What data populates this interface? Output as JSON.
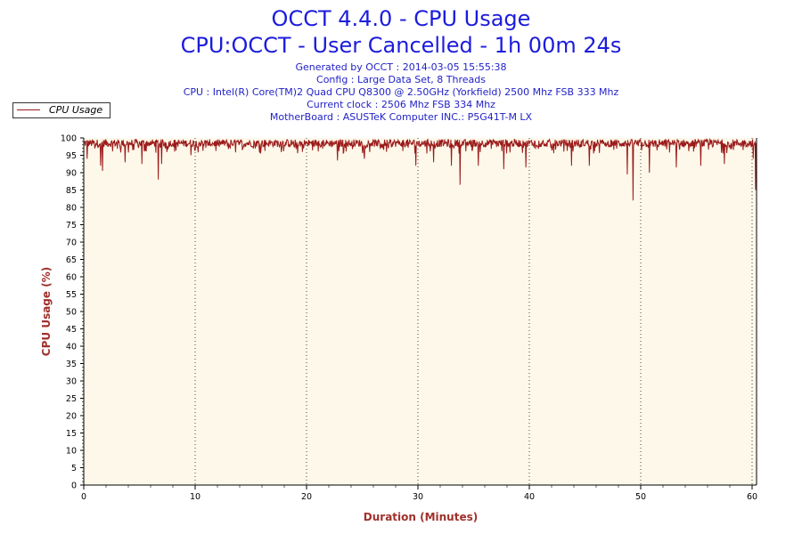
{
  "header": {
    "title": "OCCT 4.4.0 - CPU Usage",
    "subtitle": "CPU:OCCT - User Cancelled - 1h 00m 24s",
    "info_lines": [
      "Generated by OCCT : 2014-03-05 15:55:38",
      "Config : Large Data Set, 8 Threads",
      "CPU : Intel(R) Core(TM)2 Quad CPU Q8300 @ 2.50GHz (Yorkfield) 2500 Mhz FSB 333 Mhz",
      "Current clock : 2506 Mhz FSB 334 Mhz",
      "MotherBoard : ASUSTeK Computer INC.: P5G41T-M LX"
    ]
  },
  "colors": {
    "series": "#9b1a1a",
    "plot_background": "#fdf8ea",
    "title": "#1c1cdc",
    "axis_title": "#a0302a"
  },
  "chart_data": {
    "type": "line",
    "title": "OCCT 4.4.0 - CPU Usage",
    "xlabel": "Duration (Minutes)",
    "ylabel": "CPU Usage (%)",
    "xlim": [
      0,
      60.4
    ],
    "ylim": [
      0,
      100
    ],
    "x_ticks": [
      0,
      10,
      20,
      30,
      40,
      50,
      60
    ],
    "y_ticks": [
      0,
      5,
      10,
      15,
      20,
      25,
      30,
      35,
      40,
      45,
      50,
      55,
      60,
      65,
      70,
      75,
      80,
      85,
      90,
      95,
      100
    ],
    "grid": "vertical dotted lines at major x ticks",
    "legend": "top-left",
    "series": [
      {
        "name": "CPU Usage",
        "baseline": 98.5,
        "range": [
          95.5,
          100
        ],
        "dips": [
          {
            "x": 0.3,
            "y": 94
          },
          {
            "x": 1.5,
            "y": 92
          },
          {
            "x": 1.7,
            "y": 90.5
          },
          {
            "x": 3.7,
            "y": 93
          },
          {
            "x": 5.2,
            "y": 92.5
          },
          {
            "x": 6.7,
            "y": 88
          },
          {
            "x": 7.0,
            "y": 92.5
          },
          {
            "x": 9.6,
            "y": 95
          },
          {
            "x": 22.8,
            "y": 93.5
          },
          {
            "x": 25.2,
            "y": 94
          },
          {
            "x": 29.8,
            "y": 92
          },
          {
            "x": 31.4,
            "y": 93
          },
          {
            "x": 33.0,
            "y": 92
          },
          {
            "x": 33.8,
            "y": 86.5
          },
          {
            "x": 35.4,
            "y": 92
          },
          {
            "x": 37.7,
            "y": 91
          },
          {
            "x": 39.7,
            "y": 91.5
          },
          {
            "x": 43.8,
            "y": 92
          },
          {
            "x": 45.4,
            "y": 92
          },
          {
            "x": 48.8,
            "y": 89.5
          },
          {
            "x": 49.3,
            "y": 82
          },
          {
            "x": 50.8,
            "y": 90
          },
          {
            "x": 53.2,
            "y": 91.5
          },
          {
            "x": 55.4,
            "y": 92
          },
          {
            "x": 57.5,
            "y": 92.5
          },
          {
            "x": 60.1,
            "y": 94
          },
          {
            "x": 60.3,
            "y": 85
          }
        ]
      }
    ]
  }
}
